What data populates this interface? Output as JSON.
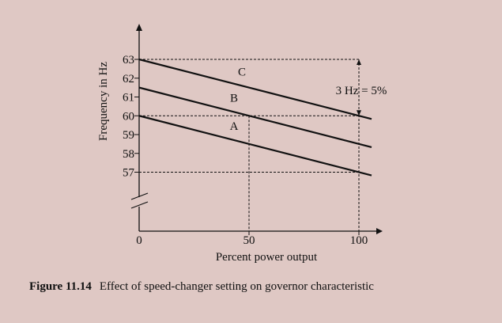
{
  "chart_data": {
    "type": "line",
    "xlabel": "Percent power output",
    "ylabel": "Frequency in Hz",
    "x_ticks": [
      0,
      50,
      100
    ],
    "y_ticks": [
      57,
      58,
      59,
      60,
      61,
      62,
      63
    ],
    "xlim": [
      0,
      110
    ],
    "ylim": [
      54,
      64
    ],
    "y_axis_break": true,
    "series": [
      {
        "name": "C",
        "x": [
          0,
          100
        ],
        "y": [
          63,
          60
        ]
      },
      {
        "name": "B",
        "x": [
          0,
          100
        ],
        "y": [
          61.5,
          58.5
        ]
      },
      {
        "name": "A",
        "x": [
          0,
          100
        ],
        "y": [
          60,
          57
        ]
      }
    ],
    "guides": [
      {
        "style": "dashed",
        "x": [
          0,
          100
        ],
        "y": [
          63,
          63
        ]
      },
      {
        "style": "dashed",
        "x": [
          0,
          100
        ],
        "y": [
          60,
          60
        ]
      },
      {
        "style": "dashed",
        "x": [
          0,
          100
        ],
        "y": [
          57,
          57
        ]
      },
      {
        "style": "dashed",
        "x": [
          50,
          50
        ],
        "y": [
          60,
          54
        ]
      },
      {
        "style": "dashed",
        "x": [
          100,
          100
        ],
        "y": [
          63,
          54
        ]
      }
    ],
    "annotation": {
      "text": "3 Hz = 5%",
      "x": 100,
      "y_from": 63,
      "y_to": 60
    },
    "grid": false,
    "line_color": "#111111"
  },
  "caption": {
    "number": "Figure 11.14",
    "text": "Effect of speed-changer setting on governor characteristic"
  }
}
